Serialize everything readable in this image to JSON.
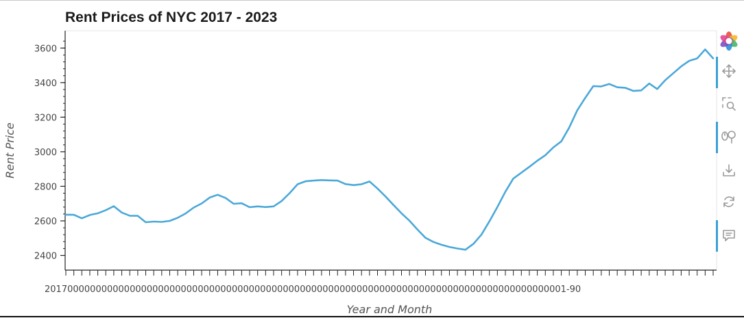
{
  "chart_data": {
    "type": "line",
    "title": "Rent Prices of NYC 2017 - 2023",
    "xlabel": "Year and Month",
    "ylabel": "Rent Price",
    "ylim": [
      2315,
      3700
    ],
    "yticks": [
      2400,
      2600,
      2800,
      3000,
      3200,
      3400,
      3600
    ],
    "x_tick_text": "20170000000000000000000000000000000000000000000000000000000000000000000000000000000000000001-90",
    "grid": false,
    "series": [
      {
        "color": "#4aa8d8",
        "values": [
          2636,
          2635,
          2615,
          2634,
          2644,
          2662,
          2685,
          2648,
          2630,
          2629,
          2592,
          2596,
          2594,
          2600,
          2618,
          2643,
          2677,
          2701,
          2735,
          2751,
          2732,
          2699,
          2702,
          2679,
          2684,
          2680,
          2684,
          2715,
          2760,
          2812,
          2829,
          2833,
          2836,
          2834,
          2833,
          2813,
          2807,
          2812,
          2828,
          2787,
          2741,
          2692,
          2644,
          2601,
          2550,
          2502,
          2478,
          2462,
          2449,
          2440,
          2433,
          2467,
          2520,
          2597,
          2680,
          2769,
          2845,
          2879,
          2913,
          2948,
          2980,
          3025,
          3060,
          3141,
          3240,
          3312,
          3380,
          3378,
          3392,
          3373,
          3370,
          3352,
          3355,
          3395,
          3363,
          3414,
          3454,
          3494,
          3526,
          3540,
          3592,
          3540
        ]
      }
    ]
  },
  "toolbar": {
    "items": [
      {
        "name": "bokeh-logo-icon",
        "active": false
      },
      {
        "name": "pan-icon",
        "active": true
      },
      {
        "name": "box-zoom-icon",
        "active": false
      },
      {
        "name": "wheel-zoom-icon",
        "active": true
      },
      {
        "name": "save-icon",
        "active": false
      },
      {
        "name": "reset-icon",
        "active": false
      },
      {
        "name": "hover-icon",
        "active": true
      }
    ]
  }
}
